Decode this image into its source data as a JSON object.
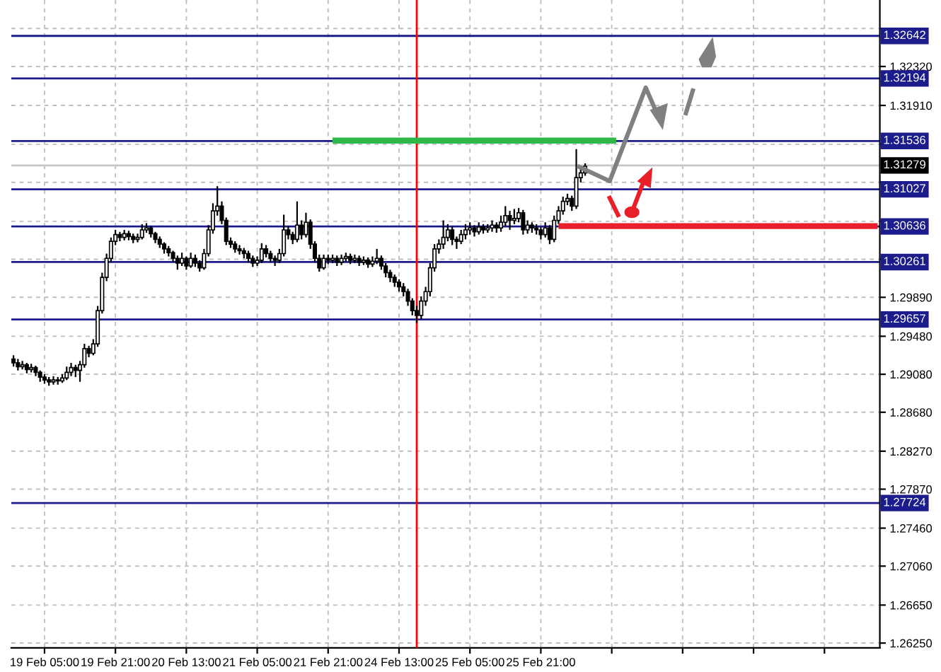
{
  "chart_data": {
    "type": "candlestick",
    "categories": [
      null,
      null,
      null,
      null,
      null,
      null,
      null,
      "19 Feb 05:00",
      null,
      null,
      null,
      null,
      null,
      null,
      null,
      null,
      null,
      null,
      null,
      null,
      null,
      null,
      null,
      "19 Feb 21:00",
      null,
      null,
      null,
      null,
      null,
      null,
      null,
      null,
      null,
      null,
      null,
      null,
      null,
      null,
      null,
      "20 Feb 13:00",
      null,
      null,
      null,
      null,
      null,
      null,
      null,
      null,
      null,
      null,
      null,
      null,
      null,
      null,
      null,
      "21 Feb 05:00",
      null,
      null,
      null,
      null,
      null,
      null,
      null,
      null,
      null,
      null,
      null,
      null,
      null,
      null,
      null,
      "21 Feb 21:00",
      null,
      null,
      null,
      null,
      null,
      null,
      null,
      null,
      null,
      null,
      null,
      null,
      null,
      null,
      null,
      "24 Feb 13:00",
      null,
      null,
      null,
      null,
      null,
      null,
      null,
      null,
      null,
      null,
      null,
      null,
      null,
      null,
      null,
      "25 Feb 05:00",
      null,
      null,
      null,
      null,
      null,
      null,
      null,
      null,
      null,
      null,
      null,
      null,
      null,
      null,
      null,
      "25 Feb 21:00",
      null,
      null,
      null,
      null,
      null,
      null,
      null,
      null,
      null,
      null,
      null,
      null,
      null,
      null,
      null,
      null,
      null,
      null,
      null,
      null,
      null,
      null,
      null,
      null,
      null,
      null,
      null,
      null,
      null,
      null,
      null,
      null,
      null,
      null,
      null,
      null,
      null,
      null,
      null,
      null,
      null,
      null,
      null,
      null,
      null,
      null,
      null,
      null,
      null,
      null,
      null,
      null,
      null,
      null,
      null,
      null,
      null,
      null,
      null,
      null,
      null,
      null,
      null,
      null,
      null,
      null,
      null,
      null,
      null,
      null,
      null,
      null,
      null,
      null,
      null,
      null
    ],
    "ohlc": [
      [
        1.2924,
        1.2928,
        1.2916,
        1.292
      ],
      [
        1.292,
        1.2924,
        1.2912,
        1.2916
      ],
      [
        1.2916,
        1.2922,
        1.2913,
        1.2918
      ],
      [
        1.2918,
        1.292,
        1.2909,
        1.2913
      ],
      [
        1.2913,
        1.2919,
        1.291,
        1.2915
      ],
      [
        1.2915,
        1.2917,
        1.2906,
        1.291
      ],
      [
        1.291,
        1.2912,
        1.29,
        1.2905
      ],
      [
        1.2905,
        1.2908,
        1.2898,
        1.2902
      ],
      [
        1.2902,
        1.2905,
        1.2896,
        1.29
      ],
      [
        1.29,
        1.2906,
        1.2897,
        1.2902
      ],
      [
        1.2902,
        1.2905,
        1.2897,
        1.2901
      ],
      [
        1.2901,
        1.2908,
        1.2899,
        1.2904
      ],
      [
        1.2904,
        1.2916,
        1.2902,
        1.291
      ],
      [
        1.291,
        1.292,
        1.2906,
        1.2915
      ],
      [
        1.2915,
        1.2918,
        1.2905,
        1.2912
      ],
      [
        1.2912,
        1.2922,
        1.29,
        1.2918
      ],
      [
        1.2918,
        1.294,
        1.2915,
        1.2935
      ],
      [
        1.2935,
        1.2938,
        1.2926,
        1.293
      ],
      [
        1.293,
        1.2945,
        1.2928,
        1.294
      ],
      [
        1.294,
        1.298,
        1.2937,
        1.2975
      ],
      [
        1.2975,
        1.3015,
        1.2972,
        1.301
      ],
      [
        1.301,
        1.3035,
        1.3006,
        1.303
      ],
      [
        1.303,
        1.3052,
        1.3026,
        1.3048
      ],
      [
        1.3048,
        1.306,
        1.3044,
        1.3055
      ],
      [
        1.3055,
        1.3058,
        1.3048,
        1.3052
      ],
      [
        1.3052,
        1.306,
        1.3049,
        1.3056
      ],
      [
        1.3056,
        1.3059,
        1.3049,
        1.3053
      ],
      [
        1.3053,
        1.3056,
        1.3046,
        1.305
      ],
      [
        1.305,
        1.3056,
        1.3047,
        1.3052
      ],
      [
        1.3052,
        1.3066,
        1.305,
        1.306
      ],
      [
        1.306,
        1.3067,
        1.3057,
        1.3062
      ],
      [
        1.3062,
        1.3064,
        1.3052,
        1.3056
      ],
      [
        1.3056,
        1.3058,
        1.3046,
        1.305
      ],
      [
        1.305,
        1.3053,
        1.3041,
        1.3045
      ],
      [
        1.3045,
        1.3047,
        1.3035,
        1.304
      ],
      [
        1.304,
        1.3043,
        1.3032,
        1.3036
      ],
      [
        1.3036,
        1.3038,
        1.3026,
        1.303
      ],
      [
        1.303,
        1.3033,
        1.3018,
        1.3025
      ],
      [
        1.3025,
        1.3036,
        1.3022,
        1.303
      ],
      [
        1.303,
        1.3032,
        1.3018,
        1.3022
      ],
      [
        1.3022,
        1.3036,
        1.302,
        1.303
      ],
      [
        1.303,
        1.3034,
        1.3021,
        1.3025
      ],
      [
        1.3025,
        1.3028,
        1.3016,
        1.302
      ],
      [
        1.302,
        1.304,
        1.3018,
        1.3035
      ],
      [
        1.3035,
        1.3065,
        1.3032,
        1.306
      ],
      [
        1.306,
        1.3088,
        1.3056,
        1.308
      ],
      [
        1.308,
        1.3106,
        1.3075,
        1.3085
      ],
      [
        1.3085,
        1.309,
        1.3066,
        1.307
      ],
      [
        1.307,
        1.3073,
        1.3044,
        1.3048
      ],
      [
        1.3048,
        1.3052,
        1.3041,
        1.3045
      ],
      [
        1.3045,
        1.3048,
        1.3036,
        1.304
      ],
      [
        1.304,
        1.3044,
        1.3034,
        1.3038
      ],
      [
        1.3038,
        1.3041,
        1.303,
        1.3035
      ],
      [
        1.3035,
        1.3038,
        1.3026,
        1.303
      ],
      [
        1.303,
        1.3033,
        1.3021,
        1.3025
      ],
      [
        1.3025,
        1.3032,
        1.3022,
        1.3028
      ],
      [
        1.3028,
        1.3046,
        1.3025,
        1.304
      ],
      [
        1.304,
        1.3044,
        1.3031,
        1.3035
      ],
      [
        1.3035,
        1.3038,
        1.3026,
        1.303
      ],
      [
        1.303,
        1.3033,
        1.3022,
        1.3028
      ],
      [
        1.3028,
        1.304,
        1.3025,
        1.3035
      ],
      [
        1.3035,
        1.3076,
        1.3032,
        1.306
      ],
      [
        1.306,
        1.3064,
        1.305,
        1.3055
      ],
      [
        1.3055,
        1.3058,
        1.3045,
        1.305
      ],
      [
        1.305,
        1.309,
        1.3047,
        1.3065
      ],
      [
        1.3065,
        1.307,
        1.305,
        1.3055
      ],
      [
        1.3055,
        1.3078,
        1.3052,
        1.3068
      ],
      [
        1.3068,
        1.3071,
        1.304,
        1.3045
      ],
      [
        1.3045,
        1.3048,
        1.3026,
        1.303
      ],
      [
        1.303,
        1.3034,
        1.3016,
        1.302
      ],
      [
        1.302,
        1.3034,
        1.3018,
        1.303
      ],
      [
        1.303,
        1.3034,
        1.3024,
        1.3028
      ],
      [
        1.3028,
        1.3034,
        1.3025,
        1.303
      ],
      [
        1.303,
        1.3033,
        1.3022,
        1.3026
      ],
      [
        1.3026,
        1.3034,
        1.3023,
        1.303
      ],
      [
        1.303,
        1.3036,
        1.3027,
        1.3032
      ],
      [
        1.3032,
        1.3035,
        1.3024,
        1.3028
      ],
      [
        1.3028,
        1.3034,
        1.3025,
        1.303
      ],
      [
        1.303,
        1.3033,
        1.3022,
        1.3026
      ],
      [
        1.3026,
        1.3032,
        1.3023,
        1.3028
      ],
      [
        1.3028,
        1.3031,
        1.302,
        1.3024
      ],
      [
        1.3024,
        1.3032,
        1.3021,
        1.3027
      ],
      [
        1.3027,
        1.304,
        1.3024,
        1.303
      ],
      [
        1.303,
        1.3033,
        1.3018,
        1.3022
      ],
      [
        1.3022,
        1.3025,
        1.301,
        1.3015
      ],
      [
        1.3015,
        1.3018,
        1.3005,
        1.301
      ],
      [
        1.301,
        1.3013,
        1.3,
        1.3005
      ],
      [
        1.3005,
        1.3008,
        1.2995,
        1.3
      ],
      [
        1.3,
        1.3004,
        1.299,
        1.2995
      ],
      [
        1.2995,
        1.2998,
        1.298,
        1.2985
      ],
      [
        1.2985,
        1.2988,
        1.297,
        1.2975
      ],
      [
        1.2975,
        1.298,
        1.2962,
        1.297
      ],
      [
        1.297,
        1.299,
        1.2966,
        1.2985
      ],
      [
        1.2985,
        1.3,
        1.298,
        1.2995
      ],
      [
        1.2995,
        1.3025,
        1.299,
        1.302
      ],
      [
        1.302,
        1.3045,
        1.3016,
        1.304
      ],
      [
        1.304,
        1.305,
        1.3035,
        1.3045
      ],
      [
        1.3045,
        1.307,
        1.304,
        1.3052
      ],
      [
        1.3052,
        1.3066,
        1.3048,
        1.306
      ],
      [
        1.306,
        1.3063,
        1.3044,
        1.305
      ],
      [
        1.305,
        1.3053,
        1.304,
        1.3048
      ],
      [
        1.3048,
        1.306,
        1.3045,
        1.3055
      ],
      [
        1.3055,
        1.3066,
        1.305,
        1.306
      ],
      [
        1.306,
        1.3068,
        1.3055,
        1.3062
      ],
      [
        1.3062,
        1.3065,
        1.3053,
        1.3058
      ],
      [
        1.3058,
        1.3068,
        1.3055,
        1.3063
      ],
      [
        1.3063,
        1.3066,
        1.3056,
        1.306
      ],
      [
        1.306,
        1.3066,
        1.3057,
        1.3062
      ],
      [
        1.3062,
        1.307,
        1.3058,
        1.3065
      ],
      [
        1.3065,
        1.3068,
        1.3057,
        1.3062
      ],
      [
        1.3062,
        1.3075,
        1.3058,
        1.3068
      ],
      [
        1.3068,
        1.3085,
        1.3064,
        1.3075
      ],
      [
        1.3075,
        1.308,
        1.306,
        1.307
      ],
      [
        1.307,
        1.3082,
        1.3066,
        1.3072
      ],
      [
        1.3072,
        1.3083,
        1.3068,
        1.3078
      ],
      [
        1.3078,
        1.3081,
        1.3055,
        1.306
      ],
      [
        1.306,
        1.307,
        1.3056,
        1.3065
      ],
      [
        1.3065,
        1.3068,
        1.3057,
        1.3062
      ],
      [
        1.3062,
        1.3066,
        1.3055,
        1.306
      ],
      [
        1.306,
        1.3063,
        1.305,
        1.3055
      ],
      [
        1.3055,
        1.3068,
        1.3052,
        1.3062
      ],
      [
        1.3062,
        1.3065,
        1.3045,
        1.305
      ],
      [
        1.305,
        1.3075,
        1.3047,
        1.307
      ],
      [
        1.307,
        1.3085,
        1.3066,
        1.308
      ],
      [
        1.308,
        1.3095,
        1.3076,
        1.309
      ],
      [
        1.309,
        1.3098,
        1.3086,
        1.3093
      ],
      [
        1.3093,
        1.3096,
        1.308,
        1.3085
      ],
      [
        1.3085,
        1.3145,
        1.3082,
        1.3115
      ],
      [
        1.3115,
        1.3124,
        1.311,
        1.312
      ],
      [
        1.312,
        1.313,
        1.3117,
        1.3127
      ],
      null,
      null,
      null,
      null,
      null,
      null,
      null,
      null,
      null,
      null,
      null,
      null,
      null,
      null,
      null,
      null,
      null,
      null,
      null,
      null,
      null,
      null,
      null,
      null,
      null,
      null,
      null,
      null,
      null,
      null,
      null,
      null,
      null,
      null,
      null,
      null,
      null,
      null,
      null,
      null,
      null,
      null,
      null,
      null,
      null,
      null,
      null,
      null,
      null,
      null,
      null,
      null,
      null,
      null,
      null,
      null,
      null,
      null,
      null,
      null,
      null,
      null,
      null,
      null,
      null,
      null
    ],
    "series": [
      {
        "type": "line",
        "color": "#2eb84a",
        "values": [
          null,
          null,
          null,
          null,
          null,
          null,
          null,
          null,
          null,
          null,
          null,
          null,
          null,
          null,
          null,
          null,
          null,
          null,
          null,
          null,
          null,
          null,
          null,
          null,
          null,
          null,
          null,
          null,
          null,
          null,
          null,
          null,
          null,
          null,
          null,
          null,
          null,
          null,
          null,
          null,
          null,
          null,
          null,
          null,
          null,
          null,
          null,
          null,
          null,
          null,
          null,
          null,
          null,
          null,
          null,
          null,
          null,
          null,
          null,
          null,
          null,
          null,
          null,
          null,
          null,
          null,
          null,
          null,
          null,
          null,
          null,
          null,
          1.3154,
          1.3154,
          1.3154,
          1.3154,
          1.3154,
          1.3154,
          1.3154,
          1.3154,
          1.3154,
          1.3154,
          1.3154,
          1.3154,
          1.3154,
          1.3154,
          1.3154,
          1.3154,
          1.3154,
          1.3154,
          1.3154,
          1.3154,
          1.3154,
          1.3154,
          1.3154,
          1.3154,
          1.3154,
          1.3154,
          1.3154,
          1.3154,
          1.3154,
          1.3154,
          1.3154,
          1.3154,
          1.3154,
          1.3154,
          1.3154,
          1.3154,
          1.3154,
          1.3154,
          1.3154,
          1.3154,
          1.3154,
          1.3154,
          1.3154,
          1.3154,
          1.3154,
          1.3154,
          1.3154,
          1.3154,
          1.3154,
          1.3154,
          1.3154,
          1.3154,
          1.3154,
          1.3154,
          1.3154,
          1.3154,
          1.3154,
          1.3154,
          1.3154,
          1.3154,
          1.3154,
          1.3154,
          1.3154,
          1.3154,
          1.3154,
          null,
          null,
          null,
          null,
          null,
          null,
          null,
          null,
          null,
          null,
          null,
          null,
          null,
          null,
          null,
          null,
          null,
          null,
          null,
          null,
          null,
          null,
          null,
          null,
          null,
          null,
          null,
          null,
          null,
          null,
          null,
          null,
          null,
          null,
          null,
          null,
          null,
          null,
          null,
          null,
          null,
          null,
          null,
          null,
          null,
          null,
          null,
          null,
          null,
          null,
          null,
          null,
          null,
          null,
          null,
          null,
          null,
          null,
          null
        ]
      },
      {
        "type": "line",
        "color": "#e8202a",
        "values": [
          null,
          null,
          null,
          null,
          null,
          null,
          null,
          null,
          null,
          null,
          null,
          null,
          null,
          null,
          null,
          null,
          null,
          null,
          null,
          null,
          null,
          null,
          null,
          null,
          null,
          null,
          null,
          null,
          null,
          null,
          null,
          null,
          null,
          null,
          null,
          null,
          null,
          null,
          null,
          null,
          null,
          null,
          null,
          null,
          null,
          null,
          null,
          null,
          null,
          null,
          null,
          null,
          null,
          null,
          null,
          null,
          null,
          null,
          null,
          null,
          null,
          null,
          null,
          null,
          null,
          null,
          null,
          null,
          null,
          null,
          null,
          null,
          null,
          null,
          null,
          null,
          null,
          null,
          null,
          null,
          null,
          null,
          null,
          null,
          null,
          null,
          null,
          null,
          null,
          null,
          null,
          null,
          null,
          null,
          null,
          null,
          null,
          null,
          null,
          null,
          null,
          null,
          null,
          null,
          null,
          null,
          null,
          null,
          null,
          null,
          null,
          null,
          null,
          null,
          null,
          null,
          null,
          null,
          null,
          null,
          null,
          null,
          null,
          1.3064,
          1.3064,
          1.3064,
          1.3064,
          1.3064,
          1.3064,
          1.3064,
          1.3064,
          1.3064,
          1.3064,
          1.3064,
          1.3064,
          1.3064,
          1.3064,
          1.3064,
          1.3064,
          1.3064,
          1.3064,
          1.3064,
          1.3064,
          1.3064,
          1.3064,
          1.3064,
          1.3064,
          1.3064,
          1.3064,
          1.3064,
          1.3064,
          1.3064,
          1.3064,
          1.3064,
          1.3064,
          1.3064,
          1.3064,
          1.3064,
          1.3064,
          1.3064,
          1.3064,
          1.3064,
          1.3064,
          1.3064,
          1.3064,
          1.3064,
          1.3064,
          1.3064,
          1.3064,
          1.3064,
          1.3064,
          1.3064,
          1.3064,
          1.3064,
          1.3064,
          1.3064,
          1.3064,
          1.3064,
          1.3064,
          1.3064,
          1.3064,
          1.3064,
          1.3064,
          1.3064,
          1.3064,
          1.3064,
          1.3064,
          1.3064,
          1.3064,
          1.3064,
          1.3064,
          1.3064,
          1.3064,
          1.3064,
          1.3064,
          1.3064
        ]
      }
    ],
    "ylim": [
      1.262,
      1.3302
    ],
    "yticks": [
      {
        "value": 1.2625,
        "label": "1.26250"
      },
      {
        "value": 1.2665,
        "label": "1.26650"
      },
      {
        "value": 1.2706,
        "label": "1.27060"
      },
      {
        "value": 1.2746,
        "label": "1.27460"
      },
      {
        "value": 1.2787,
        "label": "1.27870"
      },
      {
        "value": 1.2827,
        "label": "1.28270"
      },
      {
        "value": 1.2868,
        "label": "1.28680"
      },
      {
        "value": 1.2908,
        "label": "1.29080"
      },
      {
        "value": 1.2948,
        "label": "1.29480"
      },
      {
        "value": 1.2989,
        "label": "1.29890"
      },
      {
        "value": 1.3029,
        "label": null
      },
      {
        "value": 1.3069,
        "label": null
      },
      {
        "value": 1.311,
        "label": null
      },
      {
        "value": 1.315,
        "label": null
      },
      {
        "value": 1.3191,
        "label": "1.31910"
      },
      {
        "value": 1.3232,
        "label": "1.32320"
      },
      {
        "value": 1.3272,
        "label": null
      }
    ],
    "ref_lines": [
      {
        "axis": "y",
        "value": 1.32642,
        "label": "1.32642",
        "color": "#1c1c8c"
      },
      {
        "axis": "y",
        "value": 1.32194,
        "label": "1.32194",
        "color": "#1c1c8c"
      },
      {
        "axis": "y",
        "value": 1.31536,
        "label": "1.31536",
        "color": "#1c1c8c"
      },
      {
        "axis": "y",
        "value": 1.31279,
        "label": "1.31279",
        "color": "#c8c8c8"
      },
      {
        "axis": "y",
        "value": 1.31027,
        "label": "1.31027",
        "color": "#1c1c8c"
      },
      {
        "axis": "y",
        "value": 1.30636,
        "label": "1.30636",
        "color": "#1c1c8c"
      },
      {
        "axis": "y",
        "value": 1.30261,
        "label": "1.30261",
        "color": "#1c1c8c"
      },
      {
        "axis": "y",
        "value": 1.29657,
        "label": "1.29657",
        "color": "#1c1c8c"
      },
      {
        "axis": "y",
        "value": 1.27724,
        "label": "1.27724",
        "color": "#1c1c8c"
      }
    ],
    "grid": true
  }
}
